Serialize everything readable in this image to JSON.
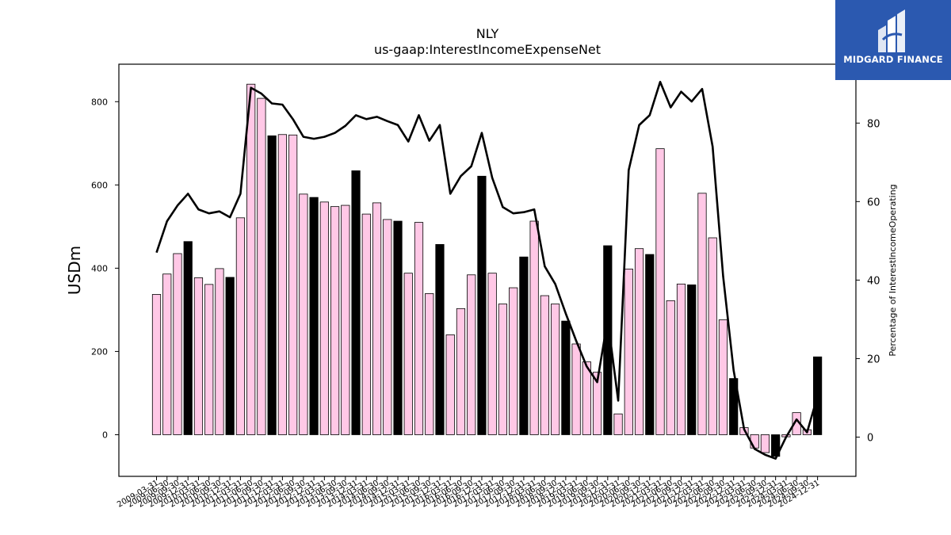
{
  "brand": {
    "name": "MIDGARD FINANCE",
    "bg_color": "#2b59b0"
  },
  "chart_data": {
    "type": "bar",
    "title": "NLY",
    "subtitle": "us-gaap:InterestIncomeExpenseNet",
    "ylabel": "USDm",
    "y2label": "Percentage of InterestIncomeOperating",
    "ylim": [
      -100,
      890
    ],
    "y2lim": [
      -10,
      95
    ],
    "yticks": [
      0,
      200,
      400,
      600,
      800
    ],
    "y2ticks": [
      0,
      20,
      40,
      60,
      80
    ],
    "colors": {
      "bar": "#ffc8e6",
      "bar_highlight": "#000000",
      "line": "#000000"
    },
    "legend": "none",
    "grid": false,
    "categories": [
      "2009-03-31",
      "2009-06-30",
      "2009-09-30",
      "2009-12-31",
      "2010-03-31",
      "2010-06-30",
      "2010-09-30",
      "2010-12-31",
      "2011-03-31",
      "2011-06-30",
      "2011-09-30",
      "2011-12-31",
      "2012-03-31",
      "2012-06-30",
      "2012-09-30",
      "2012-12-31",
      "2013-03-31",
      "2013-06-30",
      "2013-09-30",
      "2013-12-31",
      "2014-03-31",
      "2014-06-30",
      "2014-09-30",
      "2014-12-31",
      "2015-03-31",
      "2015-06-30",
      "2015-09-30",
      "2015-12-31",
      "2016-03-31",
      "2016-06-30",
      "2016-09-30",
      "2016-12-31",
      "2017-03-31",
      "2017-06-30",
      "2017-09-30",
      "2017-12-31",
      "2018-03-31",
      "2018-06-30",
      "2018-09-30",
      "2018-12-31",
      "2019-03-31",
      "2019-06-30",
      "2019-09-30",
      "2019-12-31",
      "2020-03-31",
      "2020-06-30",
      "2020-09-30",
      "2020-12-31",
      "2021-03-31",
      "2021-06-30",
      "2021-09-30",
      "2021-12-31",
      "2022-03-31",
      "2022-06-30",
      "2022-09-30",
      "2022-12-31",
      "2023-03-31",
      "2023-06-30",
      "2023-09-30",
      "2023-12-31",
      "2024-03-31",
      "2024-06-30",
      "2024-09-30",
      "2024-12-31"
    ],
    "xtick_labels": [
      "2009-03-31",
      "2009-06-30",
      "2009-09-30",
      "2009-12-31",
      "2010-03-31",
      "2010-06-30",
      "2010-09-30",
      "2010-12-31",
      "2011-03-31",
      "2011-06-30",
      "2011-09-30",
      "2011-12-31",
      "2012-03-31",
      "2012-06-30",
      "2012-09-30",
      "2012-12-31",
      "2013-03-31",
      "2013-06-30",
      "2013-09-30",
      "2013-12-31",
      "2014-03-31",
      "2014-06-30",
      "2014-09-30",
      "2014-12-31",
      "2015-03-31",
      "2015-06-30",
      "2015-09-30",
      "2015-12-31",
      "2016-03-31",
      "2016-06-30",
      "2016-09-30",
      "2016-12-31",
      "2017-03-31",
      "2017-06-30",
      "2017-09-30",
      "2017-12-31",
      "2018-03-31",
      "2018-06-30",
      "2018-09-30",
      "2018-12-31",
      "2019-03-31",
      "2019-06-30",
      "2019-09-30",
      "2019-12-31",
      "2020-03-31",
      "2020-06-30",
      "2020-09-30",
      "2020-12-31",
      "2021-03-31",
      "2021-06-30",
      "2021-09-30",
      "2021-12-31",
      "2022-03-31",
      "2022-06-30",
      "2022-09-30",
      "2022-12-31",
      "2023-03-31",
      "2023-06-30",
      "2023-09-30",
      "2023-12-31",
      "2024-03-31",
      "2024-06-30",
      "2024-09-30",
      "2024-12-31"
    ],
    "series": [
      {
        "kind": "bar",
        "axis": "left",
        "values": [
          337,
          386,
          435,
          464,
          377,
          361,
          399,
          378,
          521,
          842,
          808,
          718,
          721,
          720,
          578,
          570,
          559,
          548,
          551,
          634,
          530,
          557,
          517,
          513,
          388,
          510,
          339,
          457,
          240,
          303,
          384,
          621,
          388,
          314,
          353,
          427,
          513,
          334,
          314,
          273,
          218,
          175,
          150,
          454,
          50,
          398,
          447,
          433,
          687,
          322,
          362,
          360,
          580,
          473,
          276,
          135,
          17,
          -32,
          -43,
          -52,
          -5,
          53,
          12,
          187
        ],
        "highlight": [
          false,
          false,
          false,
          true,
          false,
          false,
          false,
          true,
          false,
          false,
          false,
          true,
          false,
          false,
          false,
          true,
          false,
          false,
          false,
          true,
          false,
          false,
          false,
          true,
          false,
          false,
          false,
          true,
          false,
          false,
          false,
          true,
          false,
          false,
          false,
          true,
          false,
          false,
          false,
          true,
          false,
          false,
          false,
          true,
          false,
          false,
          false,
          true,
          false,
          false,
          false,
          true,
          false,
          false,
          false,
          true,
          false,
          false,
          false,
          true,
          false,
          false,
          false,
          true
        ]
      },
      {
        "kind": "line",
        "axis": "right",
        "values": [
          47,
          55,
          59,
          62,
          58,
          57,
          57.5,
          56,
          62,
          89,
          87.5,
          85,
          84.7,
          81,
          76.5,
          76,
          76.5,
          77.5,
          79.3,
          82,
          81,
          81.6,
          80.5,
          79.5,
          75.3,
          82,
          75.5,
          79.5,
          62,
          66.5,
          69,
          77.5,
          66,
          58.6,
          57,
          57.3,
          58,
          43.5,
          39,
          31.5,
          24.5,
          18,
          14,
          30,
          9.3,
          68,
          79.5,
          82,
          90.5,
          84,
          88,
          85.5,
          88.7,
          74,
          41,
          17,
          2,
          -3,
          -4.5,
          -5.5,
          0,
          4.5,
          1.2,
          10.5
        ]
      }
    ]
  }
}
